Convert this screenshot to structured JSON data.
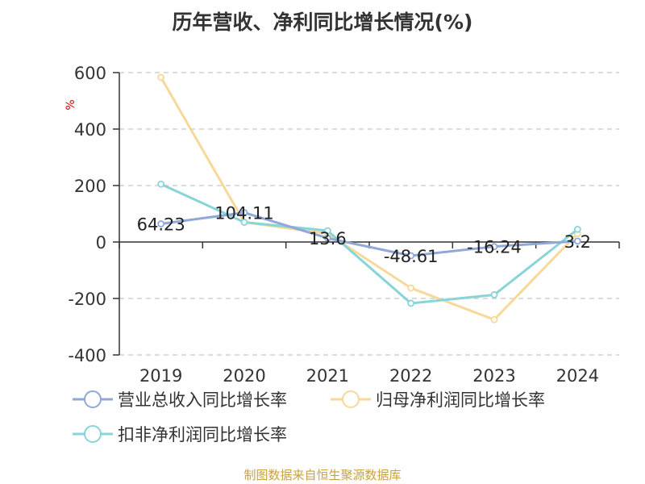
{
  "chart_data": {
    "type": "line",
    "title": "历年营收、净利同比增长情况(%)",
    "ylabel": "%",
    "categories": [
      "2019",
      "2020",
      "2021",
      "2022",
      "2023",
      "2024"
    ],
    "ylim": [
      -400,
      600
    ],
    "yticks": [
      "600",
      "400",
      "200",
      "0",
      "-200",
      "-400"
    ],
    "grid": true,
    "legend_position": "bottom",
    "series": [
      {
        "name": "营业总收入同比增长率",
        "color": "#8fa8d8",
        "values": [
          64.23,
          104.11,
          13.6,
          -48.61,
          -16.24,
          3.2
        ],
        "labels": [
          "64.23",
          "104.11",
          "13.6",
          "-48.61",
          "-16.24",
          "3.2"
        ]
      },
      {
        "name": "归母净利润同比增长率",
        "color": "#f8d898",
        "values": [
          583,
          70,
          30,
          -163,
          -275,
          30
        ]
      },
      {
        "name": "扣非净利润同比增长率",
        "color": "#88d4d8",
        "values": [
          205,
          70,
          40,
          -217,
          -187,
          45
        ]
      }
    ]
  },
  "source": "制图数据来自恒生聚源数据库"
}
